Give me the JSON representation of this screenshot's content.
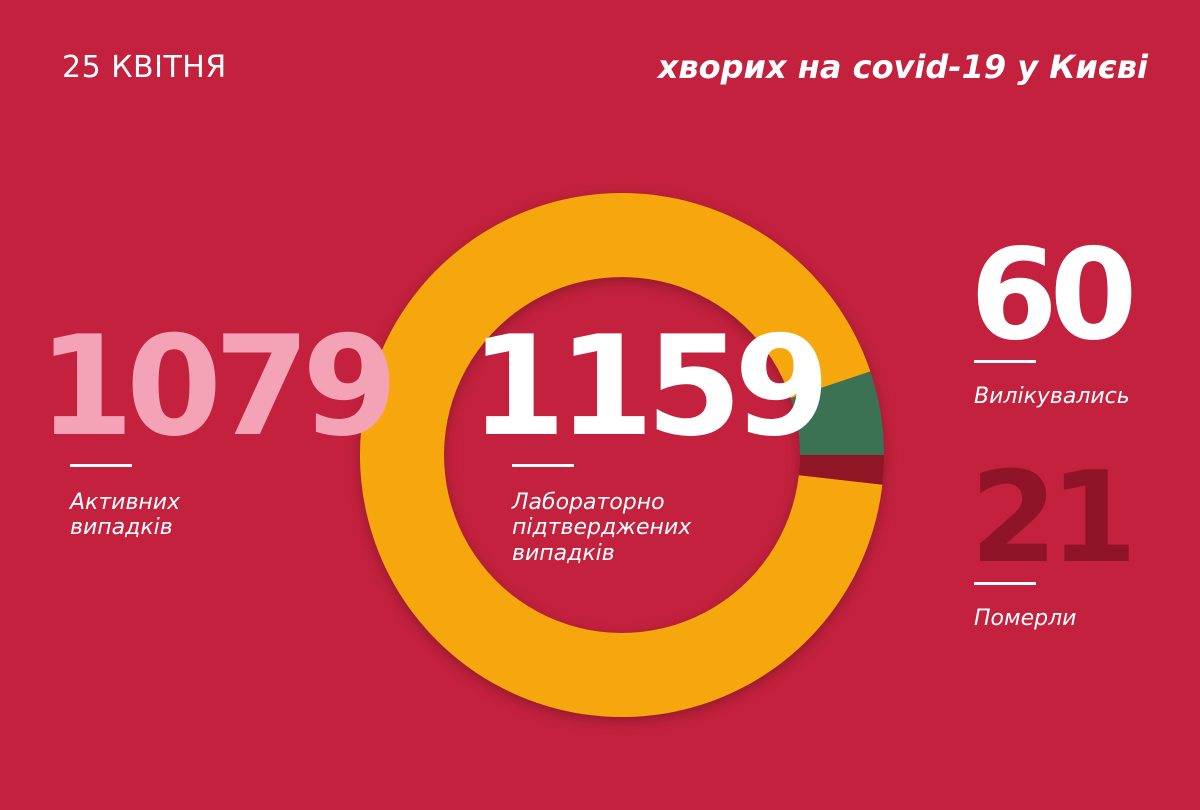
{
  "header": {
    "date": "25 КВІТНЯ",
    "title": "хворих на covid-19 у Києві"
  },
  "stats": {
    "active": {
      "number": "1079",
      "label_line1": "Активних",
      "label_line2": "випадків"
    },
    "total": {
      "number": "1159",
      "label_line1": "Лабораторно",
      "label_line2": "підтверджених",
      "label_line3": "випадків"
    },
    "recovered": {
      "number": "60",
      "label": "Вилікувались"
    },
    "deaths": {
      "number": "21",
      "label": "Померли"
    }
  },
  "colors": {
    "background": "#c3213d",
    "active": "#f3a3b5",
    "donut_active": "#f6a70b",
    "donut_recovered": "#3b7253",
    "donut_deaths": "#901428"
  },
  "chart_data": {
    "type": "pie",
    "categories": [
      "Активних випадків",
      "Вилікувались",
      "Померли"
    ],
    "values": [
      1079,
      60,
      21
    ],
    "total": 1159
  }
}
